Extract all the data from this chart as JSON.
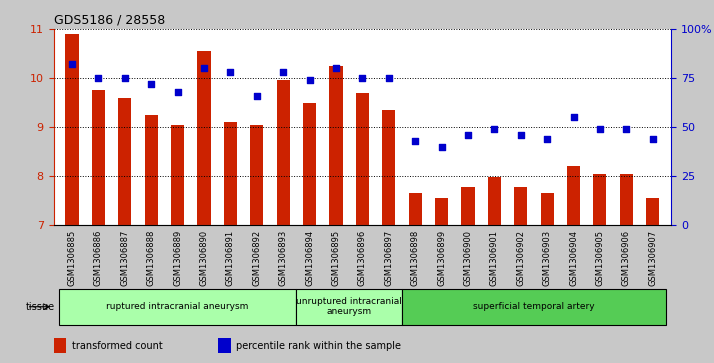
{
  "title": "GDS5186 / 28558",
  "samples": [
    "GSM1306885",
    "GSM1306886",
    "GSM1306887",
    "GSM1306888",
    "GSM1306889",
    "GSM1306890",
    "GSM1306891",
    "GSM1306892",
    "GSM1306893",
    "GSM1306894",
    "GSM1306895",
    "GSM1306896",
    "GSM1306897",
    "GSM1306898",
    "GSM1306899",
    "GSM1306900",
    "GSM1306901",
    "GSM1306902",
    "GSM1306903",
    "GSM1306904",
    "GSM1306905",
    "GSM1306906",
    "GSM1306907"
  ],
  "bar_values": [
    10.9,
    9.75,
    9.6,
    9.25,
    9.05,
    10.55,
    9.1,
    9.05,
    9.95,
    9.5,
    10.25,
    9.7,
    9.35,
    7.65,
    7.55,
    7.78,
    7.98,
    7.78,
    7.65,
    8.2,
    8.05,
    8.05,
    7.55
  ],
  "scatter_values": [
    82,
    75,
    75,
    72,
    68,
    80,
    78,
    66,
    78,
    74,
    80,
    75,
    75,
    43,
    40,
    46,
    49,
    46,
    44,
    55,
    49,
    49,
    44
  ],
  "bar_color": "#cc2200",
  "scatter_color": "#0000cc",
  "ylim_left": [
    7,
    11
  ],
  "ylim_right": [
    0,
    100
  ],
  "yticks_left": [
    7,
    8,
    9,
    10,
    11
  ],
  "yticks_right": [
    0,
    25,
    50,
    75,
    100
  ],
  "ytick_labels_right": [
    "0",
    "25",
    "50",
    "75",
    "100%"
  ],
  "group_labels": [
    "ruptured intracranial aneurysm",
    "unruptured intracranial\naneurysm",
    "superficial temporal artery"
  ],
  "group_ranges": [
    [
      0,
      9
    ],
    [
      9,
      13
    ],
    [
      13,
      23
    ]
  ],
  "group_colors": [
    "#aaffaa",
    "#aaffaa",
    "#55cc55"
  ],
  "tissue_label": "tissue",
  "legend_bar_label": "transformed count",
  "legend_scatter_label": "percentile rank within the sample",
  "plot_bg_color": "#ffffff",
  "fig_bg_color": "#c8c8c8",
  "bar_width": 0.5
}
